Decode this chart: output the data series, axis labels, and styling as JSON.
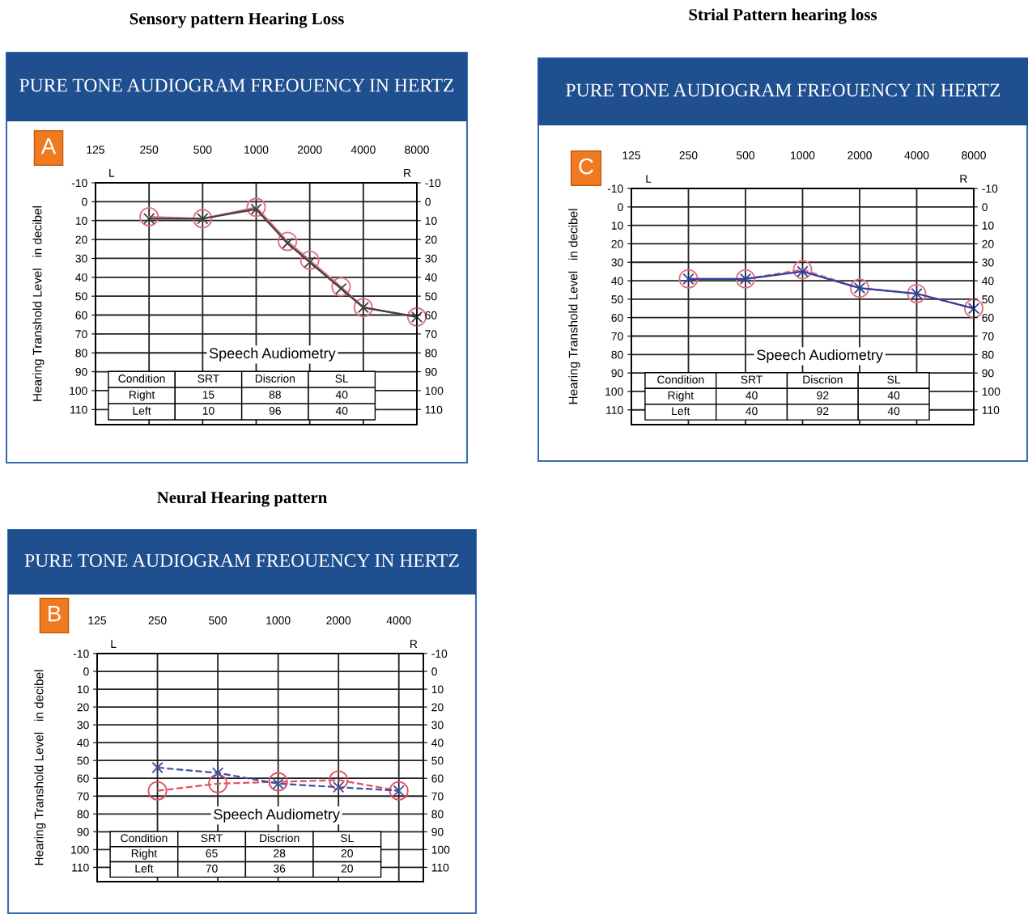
{
  "chart_data": [
    {
      "type": "line",
      "title": "Sensory pattern Hearing Loss",
      "subtitle": "PURE TONE AUDIOGRAM FREOUENCY IN HERTZ",
      "ylabel": "Hearing Transhold Level   in decibel",
      "log": "x",
      "xlim": [
        125,
        8000
      ],
      "xticks": [
        125,
        250,
        500,
        1000,
        2000,
        4000,
        8000
      ],
      "ylim": [
        118,
        -10
      ],
      "yticks": [
        -10,
        0,
        10,
        20,
        30,
        40,
        50,
        60,
        70,
        80,
        90,
        100,
        110
      ],
      "y2lim": [
        118,
        -10
      ],
      "y2ticks": [
        -10,
        0,
        10,
        20,
        30,
        40,
        50,
        60,
        70,
        80,
        90,
        100,
        110
      ],
      "grid": true,
      "series": [
        {
          "color": "#e07080",
          "marker": "circle",
          "line_style": "solid",
          "x": [
            250,
            500,
            1000,
            1500,
            2000,
            3000,
            4000,
            8000
          ],
          "values": [
            8,
            9,
            3,
            21,
            31,
            45,
            56,
            61
          ]
        },
        {
          "color": "#404040",
          "marker": "cross",
          "line_style": "solid",
          "x": [
            250,
            500,
            1000,
            1500,
            2000,
            3000,
            4000,
            8000
          ],
          "values": [
            9,
            9,
            4,
            22,
            32,
            46,
            56,
            61
          ]
        }
      ],
      "annotations": [
        "A",
        "L",
        "R",
        "Speech Audiometry",
        "Condition",
        "SRT",
        "Discrion",
        "SL",
        "Right",
        "15",
        "88",
        "40",
        "Left",
        "10",
        "96",
        "40"
      ]
    },
    {
      "type": "line",
      "title": "Strial Pattern hearing loss",
      "subtitle": "PURE TONE AUDIOGRAM FREOUENCY IN HERTZ",
      "ylabel": "Hearing Transhold Level   in decibel",
      "log": "x",
      "xlim": [
        125,
        8000
      ],
      "xticks": [
        125,
        250,
        500,
        1000,
        2000,
        4000,
        8000
      ],
      "ylim": [
        118,
        -10
      ],
      "yticks": [
        -10,
        0,
        10,
        20,
        30,
        40,
        50,
        60,
        70,
        80,
        90,
        100,
        110
      ],
      "y2lim": [
        118,
        -10
      ],
      "y2ticks": [
        -10,
        0,
        10,
        20,
        30,
        40,
        50,
        60,
        70,
        80,
        90,
        100,
        110
      ],
      "grid": true,
      "series": [
        {
          "color": "#e07080",
          "marker": "circle",
          "line_style": "dashed",
          "x": [
            250,
            500,
            1000,
            2000,
            4000,
            8000
          ],
          "values": [
            39,
            39,
            34,
            44,
            47,
            55
          ]
        },
        {
          "color": "#3040a0",
          "marker": "cross",
          "line_style": "solid",
          "x": [
            250,
            500,
            1000,
            2000,
            4000,
            8000
          ],
          "values": [
            39,
            39,
            35,
            44,
            47,
            55
          ]
        }
      ],
      "annotations": [
        "C",
        "L",
        "R",
        "Speech Audiometry",
        "Condition",
        "SRT",
        "Discrion",
        "SL",
        "Right",
        "40",
        "92",
        "40",
        "Left",
        "40",
        "92",
        "40"
      ]
    },
    {
      "type": "line",
      "title": "Neural Hearing pattern",
      "subtitle": "PURE TONE AUDIOGRAM FREOUENCY IN HERTZ",
      "ylabel": "Hearing Transhold Level   in decibel",
      "log": "x",
      "xlim": [
        125,
        5300
      ],
      "xticks": [
        125,
        250,
        500,
        1000,
        2000,
        4000
      ],
      "ylim": [
        118,
        -10
      ],
      "yticks": [
        -10,
        0,
        10,
        20,
        30,
        40,
        50,
        60,
        70,
        80,
        90,
        100,
        110
      ],
      "y2lim": [
        118,
        -10
      ],
      "y2ticks": [
        -10,
        0,
        10,
        20,
        30,
        40,
        50,
        60,
        70,
        80,
        90,
        100,
        110
      ],
      "grid": true,
      "series": [
        {
          "color": "#e05060",
          "marker": "circle",
          "line_style": "dashed",
          "x": [
            250,
            500,
            1000,
            2000,
            4000
          ],
          "values": [
            67,
            63,
            62,
            61,
            67
          ]
        },
        {
          "color": "#4050a0",
          "marker": "cross",
          "line_style": "dashed",
          "x": [
            250,
            500,
            1000,
            2000,
            4000
          ],
          "values": [
            54,
            57,
            63,
            65,
            67
          ]
        }
      ],
      "annotations": [
        "B",
        "L",
        "R",
        "Speech Audiometry",
        "Condition",
        "SRT",
        "Discrion",
        "SL",
        "Right",
        "65",
        "28",
        "20",
        "Left",
        "70",
        "36",
        "20"
      ]
    }
  ]
}
